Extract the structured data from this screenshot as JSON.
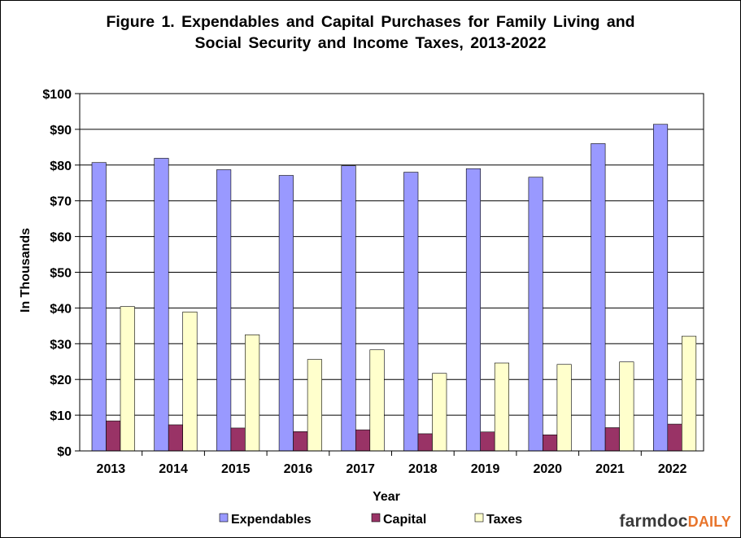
{
  "chart_data": {
    "type": "bar",
    "title_line1": "Figure 1. Expendables and Capital Purchases for Family Living and",
    "title_line2": "Social Security and Income Taxes, 2013-2022",
    "xlabel": "Year",
    "ylabel": "In Thousands",
    "ylim": [
      0,
      100
    ],
    "ytick_labels": [
      "$0",
      "$10",
      "$20",
      "$30",
      "$40",
      "$50",
      "$60",
      "$70",
      "$80",
      "$90",
      "$100"
    ],
    "grid": true,
    "legend_position": "bottom",
    "categories": [
      "2013",
      "2014",
      "2015",
      "2016",
      "2017",
      "2018",
      "2019",
      "2020",
      "2021",
      "2022"
    ],
    "series": [
      {
        "name": "Expendables",
        "color": "#9999ff",
        "values": [
          80.7,
          81.9,
          78.7,
          77.1,
          79.8,
          78.0,
          79.0,
          76.6,
          86.0,
          91.4
        ]
      },
      {
        "name": "Capital",
        "color": "#993366",
        "values": [
          8.4,
          7.3,
          6.4,
          5.4,
          5.9,
          4.8,
          5.3,
          4.5,
          6.5,
          7.5
        ]
      },
      {
        "name": "Taxes",
        "color": "#ffffcc",
        "values": [
          40.4,
          38.9,
          32.5,
          25.6,
          28.3,
          21.7,
          24.6,
          24.2,
          24.9,
          32.1
        ]
      }
    ]
  },
  "brand": {
    "part1": "farmdoc",
    "part2": "DAILY"
  }
}
